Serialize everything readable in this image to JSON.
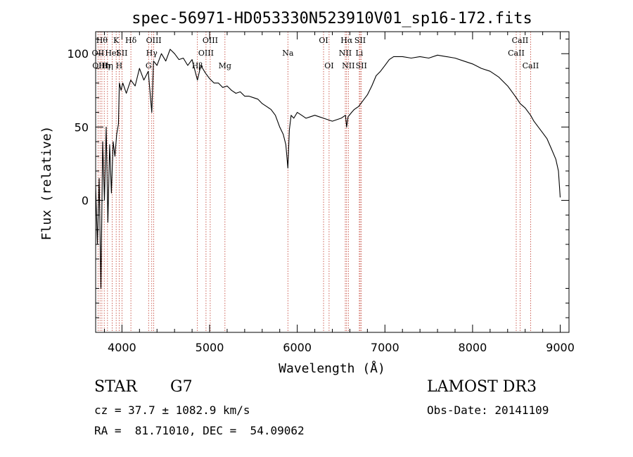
{
  "chart_data": {
    "type": "line",
    "title": "spec-56971-HD053330N523910V01_sp16-172.fits",
    "xlabel": "Wavelength (Å)",
    "ylabel": "Flux (relative)",
    "xlim": [
      3700,
      9100
    ],
    "ylim": [
      -90,
      115
    ],
    "xticks": [
      4000,
      5000,
      6000,
      7000,
      8000,
      9000
    ],
    "yticks": [
      0,
      50,
      100
    ],
    "grid": false,
    "series": [
      {
        "name": "flux",
        "x": [
          3700,
          3720,
          3740,
          3760,
          3780,
          3800,
          3820,
          3840,
          3860,
          3880,
          3900,
          3920,
          3940,
          3960,
          3970,
          3990,
          4010,
          4050,
          4100,
          4150,
          4200,
          4250,
          4300,
          4340,
          4360,
          4400,
          4450,
          4500,
          4550,
          4600,
          4650,
          4700,
          4750,
          4800,
          4861,
          4900,
          4950,
          5000,
          5050,
          5100,
          5150,
          5200,
          5250,
          5300,
          5350,
          5400,
          5450,
          5500,
          5550,
          5600,
          5650,
          5700,
          5750,
          5800,
          5840,
          5870,
          5893,
          5910,
          5930,
          5960,
          6000,
          6050,
          6100,
          6150,
          6200,
          6250,
          6300,
          6350,
          6400,
          6450,
          6500,
          6550,
          6563,
          6580,
          6620,
          6650,
          6700,
          6750,
          6800,
          6850,
          6900,
          6950,
          7000,
          7050,
          7100,
          7200,
          7300,
          7400,
          7500,
          7600,
          7700,
          7800,
          7900,
          8000,
          8100,
          8200,
          8300,
          8400,
          8450,
          8498,
          8542,
          8600,
          8662,
          8700,
          8750,
          8800,
          8850,
          8900,
          8950,
          8980,
          9000
        ],
        "values": [
          10,
          -30,
          15,
          -60,
          40,
          0,
          50,
          -15,
          38,
          5,
          40,
          30,
          45,
          52,
          80,
          75,
          80,
          73,
          82,
          78,
          90,
          82,
          88,
          60,
          95,
          92,
          100,
          95,
          103,
          100,
          96,
          97,
          92,
          96,
          82,
          92,
          87,
          83,
          80,
          80,
          77,
          78,
          75,
          73,
          74,
          71,
          71,
          70,
          69,
          66,
          64,
          62,
          58,
          50,
          45,
          38,
          22,
          48,
          58,
          56,
          60,
          58,
          56,
          57,
          58,
          57,
          56,
          55,
          54,
          55,
          56,
          58,
          50,
          57,
          60,
          62,
          64,
          68,
          72,
          78,
          85,
          88,
          92,
          96,
          98,
          98,
          97,
          98,
          97,
          99,
          98,
          97,
          95,
          93,
          90,
          88,
          84,
          78,
          74,
          70,
          66,
          63,
          58,
          54,
          50,
          46,
          42,
          35,
          28,
          20,
          2
        ]
      }
    ],
    "line_markers": [
      {
        "wl": 3727,
        "label": "OII",
        "row": 1
      },
      {
        "wl": 3750,
        "label": "OIII",
        "row": 2
      },
      {
        "wl": 3771,
        "label": "Hθ",
        "row": 0
      },
      {
        "wl": 3798,
        "label": "Hη",
        "row": 2
      },
      {
        "wl": 3835,
        "label": "Hη",
        "row": 2
      },
      {
        "wl": 3889,
        "label": "HeI",
        "row": 1
      },
      {
        "wl": 3934,
        "label": "K",
        "row": 0
      },
      {
        "wl": 3968,
        "label": "H",
        "row": 2
      },
      {
        "wl": 4000,
        "label": "SII",
        "row": 1
      },
      {
        "wl": 4102,
        "label": "Hδ",
        "row": 0
      },
      {
        "wl": 4304,
        "label": "G",
        "row": 2
      },
      {
        "wl": 4340,
        "label": "Hγ",
        "row": 1
      },
      {
        "wl": 4363,
        "label": "OIII",
        "row": 0
      },
      {
        "wl": 4861,
        "label": "Hβ",
        "row": 2
      },
      {
        "wl": 4959,
        "label": "OIII",
        "row": 1
      },
      {
        "wl": 5007,
        "label": "OIII",
        "row": 0
      },
      {
        "wl": 5175,
        "label": "Mg",
        "row": 2
      },
      {
        "wl": 5893,
        "label": "Na",
        "row": 1
      },
      {
        "wl": 6300,
        "label": "OI",
        "row": 0
      },
      {
        "wl": 6363,
        "label": "OI",
        "row": 2
      },
      {
        "wl": 6548,
        "label": "NII",
        "row": 1
      },
      {
        "wl": 6563,
        "label": "Hα",
        "row": 0
      },
      {
        "wl": 6583,
        "label": "NII",
        "row": 2
      },
      {
        "wl": 6708,
        "label": "Li",
        "row": 1
      },
      {
        "wl": 6717,
        "label": "SII",
        "row": 0
      },
      {
        "wl": 6731,
        "label": "SII",
        "row": 2
      },
      {
        "wl": 8498,
        "label": "CaII",
        "row": 1
      },
      {
        "wl": 8542,
        "label": "CaII",
        "row": 0
      },
      {
        "wl": 8662,
        "label": "CaII",
        "row": 2
      }
    ]
  },
  "footer": {
    "object_type": "STAR",
    "subclass": "G7",
    "survey": "LAMOST DR3",
    "cz": "cz = 37.7 ± 1082.9 km/s",
    "obs_date": "Obs-Date: 20141109",
    "coords": "RA =  81.71010, DEC =  54.09062"
  }
}
